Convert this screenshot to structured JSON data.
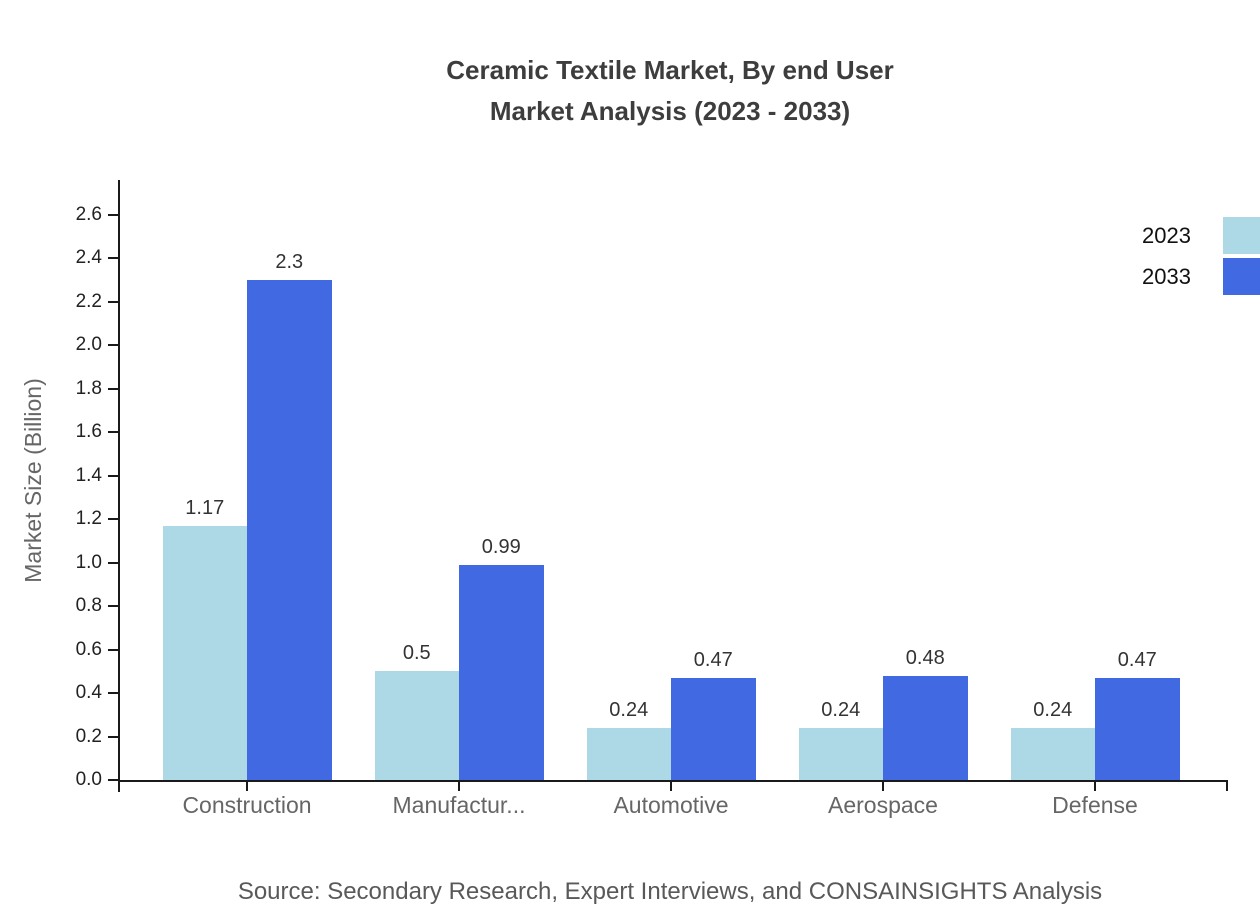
{
  "title": {
    "line1": "Ceramic Textile Market, By end User",
    "line2": "Market Analysis (2023 - 2033)"
  },
  "source": "Source: Secondary Research, Expert Interviews, and CONSAINSIGHTS Analysis",
  "axes": {
    "y_label": "Market Size (Billion)"
  },
  "colors": {
    "series_2023": "#ADD8E6",
    "series_2033": "#4169E1",
    "axis": "#1a1a1a",
    "title_text": "#3d3d3d",
    "category_text": "#666666",
    "source_text": "#595959"
  },
  "chart_data": {
    "type": "bar",
    "title": "Ceramic Textile Market, By end User Market Analysis (2023 - 2033)",
    "categories": [
      "Construction",
      "Manufactur...",
      "Automotive",
      "Aerospace",
      "Defense"
    ],
    "series": [
      {
        "name": "2023",
        "color": "#ADD8E6",
        "values": [
          1.17,
          0.5,
          0.24,
          0.24,
          0.24
        ]
      },
      {
        "name": "2033",
        "color": "#4169E1",
        "values": [
          2.3,
          0.99,
          0.47,
          0.48,
          0.47
        ]
      }
    ],
    "value_labels": [
      [
        "1.17",
        "0.5",
        "0.24",
        "0.24",
        "0.24"
      ],
      [
        "2.3",
        "0.99",
        "0.47",
        "0.48",
        "0.47"
      ]
    ],
    "xlabel": "",
    "ylabel": "Market Size (Billion)",
    "ylim": [
      0,
      2.76
    ],
    "ytick_labels": [
      "0.0",
      "0.2",
      "0.4",
      "0.6",
      "0.8",
      "1.0",
      "1.2",
      "1.4",
      "1.6",
      "1.8",
      "2.0",
      "2.2",
      "2.4",
      "2.6"
    ],
    "grid": false,
    "legend_position": "top-right"
  }
}
